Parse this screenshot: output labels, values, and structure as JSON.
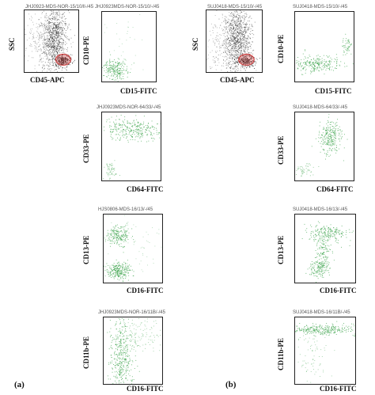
{
  "figure_labels": {
    "a": "(a)",
    "b": "(b)"
  },
  "colors": {
    "dots_gray": "#1a1a1a",
    "dots_green": "#3aa24a",
    "gate_red": "#d23a3a"
  },
  "panels": [
    {
      "id": "a-scatter",
      "title": "JHJ0923-MDS-NOR-15/10/ll-/45",
      "xlabel": "CD45-APC",
      "ylabel": "SSC",
      "kind": "ssc"
    },
    {
      "id": "a-cd10-cd15",
      "title": "JHJ0923MDS-NOR-15/10/-/45",
      "xlabel": "CD15-FITC",
      "ylabel": "CD10-PE",
      "kind": "green-corner"
    },
    {
      "id": "b-scatter",
      "title": "SUJ0418-MDS-15/10/-/45",
      "xlabel": "CD45-APC",
      "ylabel": "SSC",
      "kind": "ssc"
    },
    {
      "id": "b-cd10-cd15",
      "title": "SUJ0418-MDS-15/10/-/45",
      "xlabel": "CD15-FITC",
      "ylabel": "CD10-PE",
      "kind": "green-band"
    },
    {
      "id": "a-cd33-cd64",
      "title": "JHJ0923MDS-NOR-64/33/-/45",
      "xlabel": "CD64-FITC",
      "ylabel": "CD33-PE",
      "kind": "green-upper"
    },
    {
      "id": "b-cd33-cd64",
      "title": "SUJ0418-MDS-64/33/-/45",
      "xlabel": "CD64-FITC",
      "ylabel": "CD33-PE",
      "kind": "green-diag"
    },
    {
      "id": "a-cd13-cd16",
      "title": "HJS0806-MDS-16/13/-/45",
      "xlabel": "CD16-FITC",
      "ylabel": "CD13-PE",
      "kind": "green-two"
    },
    {
      "id": "b-cd13-cd16",
      "title": "SUJ0418-MDS-16/13/-/45",
      "xlabel": "CD16-FITC",
      "ylabel": "CD13-PE",
      "kind": "green-arc"
    },
    {
      "id": "a-cd11b-cd16",
      "title": "JHJ0923MDS-NOR-16/11B/-/45",
      "xlabel": "CD16-FITC",
      "ylabel": "CD11b-PE",
      "kind": "green-column"
    },
    {
      "id": "b-cd11b-cd16",
      "title": "SUJ0418-MDS-16/11B/-/45",
      "xlabel": "CD16-FITC",
      "ylabel": "CD11b-PE",
      "kind": "green-top"
    }
  ],
  "axis_ticks": [
    "10°",
    "10¹",
    "10²",
    "10³",
    "10⁴"
  ]
}
